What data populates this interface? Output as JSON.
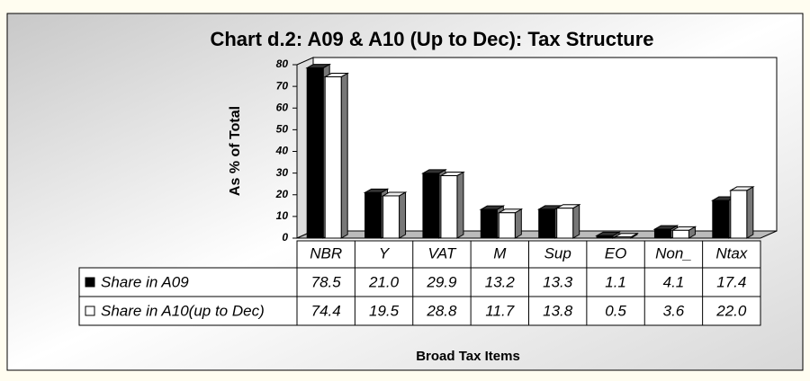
{
  "chart_data": {
    "type": "bar",
    "title": "Chart d.2: A09 & A10 (Up to Dec): Tax Structure",
    "y_label": "As % of Total",
    "x_label": "Broad Tax Items",
    "categories": [
      "NBR",
      "Y",
      "VAT",
      "M",
      "Sup",
      "EO",
      "Non_",
      "Ntax"
    ],
    "series": [
      {
        "name": "Share in A09",
        "color": "#000000",
        "values": [
          78.5,
          21.0,
          29.9,
          13.2,
          13.3,
          1.1,
          4.1,
          17.4
        ],
        "value_labels": [
          "78.5",
          "21.0",
          "29.9",
          "13.2",
          "13.3",
          "1.1",
          "4.1",
          "17.4"
        ]
      },
      {
        "name": "Share in A10(up to Dec)",
        "color": "#ffffff",
        "values": [
          74.4,
          19.5,
          28.8,
          11.7,
          13.8,
          0.5,
          3.6,
          22.0
        ],
        "value_labels": [
          "74.4",
          "19.5",
          "28.8",
          "11.7",
          "13.8",
          "0.5",
          "3.6",
          "22.0"
        ]
      }
    ],
    "ylim": [
      0,
      80
    ],
    "yticks": [
      0,
      10,
      20,
      30,
      40,
      50,
      60,
      70,
      80
    ],
    "grid": false,
    "data_table": true
  }
}
